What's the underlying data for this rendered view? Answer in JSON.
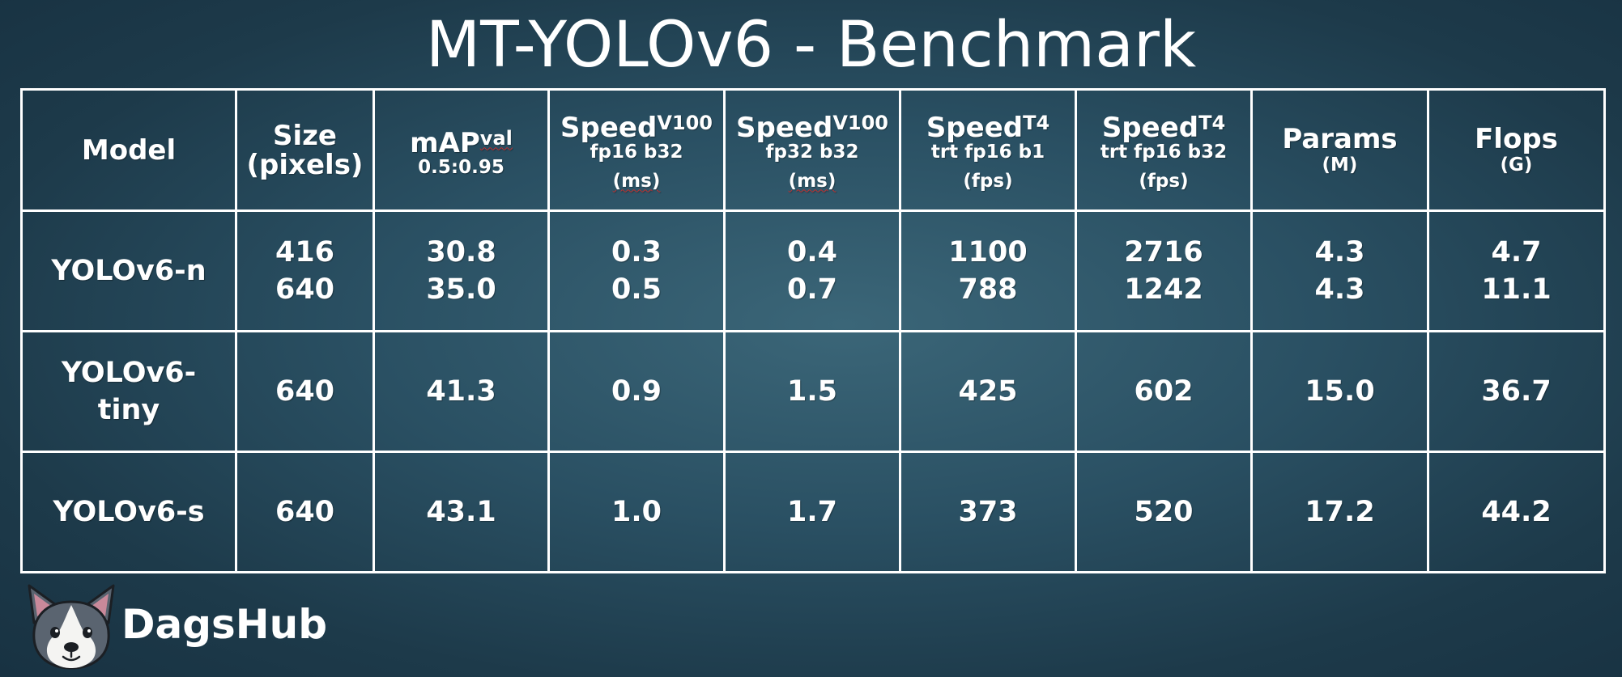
{
  "title": "MT-YOLOv6 - Benchmark",
  "brand": {
    "name": "DagsHub",
    "logo_icon": "dog-face-icon"
  },
  "chart_data": {
    "type": "table",
    "columns": [
      {
        "main": "Model",
        "sup": "",
        "sub": "",
        "unit": ""
      },
      {
        "main": "Size",
        "sup": "",
        "sub": "",
        "unit": "(pixels)"
      },
      {
        "main": "mAP",
        "sup": "val",
        "sub": "0.5:0.95",
        "unit": ""
      },
      {
        "main": "Speed",
        "sup": "V100",
        "sub": "fp16 b32",
        "unit": "(ms)"
      },
      {
        "main": "Speed",
        "sup": "V100",
        "sub": "fp32 b32",
        "unit": "(ms)"
      },
      {
        "main": "Speed",
        "sup": "T4",
        "sub": "trt fp16 b1",
        "unit": "(fps)"
      },
      {
        "main": "Speed",
        "sup": "T4",
        "sub": "trt fp16 b32",
        "unit": "(fps)"
      },
      {
        "main": "Params",
        "sup": "",
        "sub": "",
        "unit": "(M)"
      },
      {
        "main": "Flops",
        "sup": "",
        "sub": "",
        "unit": "(G)"
      }
    ],
    "rows": [
      {
        "model": "YOLOv6-n",
        "values": [
          [
            "416",
            "640"
          ],
          [
            "30.8",
            "35.0"
          ],
          [
            "0.3",
            "0.5"
          ],
          [
            "0.4",
            "0.7"
          ],
          [
            "1100",
            "788"
          ],
          [
            "2716",
            "1242"
          ],
          [
            "4.3",
            "4.3"
          ],
          [
            "4.7",
            "11.1"
          ]
        ]
      },
      {
        "model_lines": [
          "YOLOv6-",
          "tiny"
        ],
        "values": [
          [
            "640"
          ],
          [
            "41.3"
          ],
          [
            "0.9"
          ],
          [
            "1.5"
          ],
          [
            "425"
          ],
          [
            "602"
          ],
          [
            "15.0"
          ],
          [
            "36.7"
          ]
        ]
      },
      {
        "model": "YOLOv6-s",
        "values": [
          [
            "640"
          ],
          [
            "43.1"
          ],
          [
            "1.0"
          ],
          [
            "1.7"
          ],
          [
            "373"
          ],
          [
            "520"
          ],
          [
            "17.2"
          ],
          [
            "44.2"
          ]
        ]
      }
    ]
  }
}
